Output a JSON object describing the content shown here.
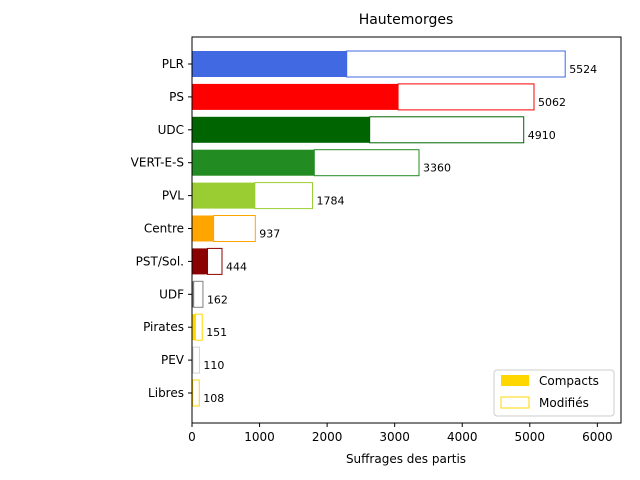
{
  "chart_data": {
    "type": "bar",
    "orientation": "horizontal",
    "stacked": true,
    "title": "Hautemorges",
    "xlabel": "Suffrages des partis",
    "ylabel": "",
    "xlim": [
      0,
      6350
    ],
    "xticks": [
      "0",
      "1000",
      "2000",
      "3000",
      "4000",
      "5000",
      "6000"
    ],
    "legend_position": "lower-right",
    "legend": [
      {
        "label": "Compacts",
        "style": "filled",
        "color": "#ffd700"
      },
      {
        "label": "Modifiés",
        "style": "outline",
        "color": "#ffd700"
      }
    ],
    "categories": [
      "PLR",
      "PS",
      "UDC",
      "VERT-E-S",
      "PVL",
      "Centre",
      "PST/Sol.",
      "UDF",
      "Pirates",
      "PEV",
      "Libres"
    ],
    "series": [
      {
        "name": "Compacts",
        "values": [
          2290,
          3050,
          2630,
          1810,
          930,
          320,
          230,
          25,
          50,
          15,
          10
        ]
      },
      {
        "name": "Modifiés",
        "values": [
          3234,
          2012,
          2280,
          1550,
          854,
          617,
          214,
          137,
          101,
          95,
          98
        ]
      }
    ],
    "totals": [
      5524,
      5062,
      4910,
      3360,
      1784,
      937,
      444,
      162,
      151,
      110,
      108
    ],
    "total_labels": [
      "5524",
      "5062",
      "4910",
      "3360",
      "1784",
      "937",
      "444",
      "162",
      "151",
      "110",
      "108"
    ],
    "colors": [
      "#4169e1",
      "#ff0000",
      "#006400",
      "#228b22",
      "#9acd32",
      "#ffa500",
      "#8b0000",
      "#808080",
      "#ffd700",
      "#d3d3d3",
      "#ffd700"
    ]
  }
}
